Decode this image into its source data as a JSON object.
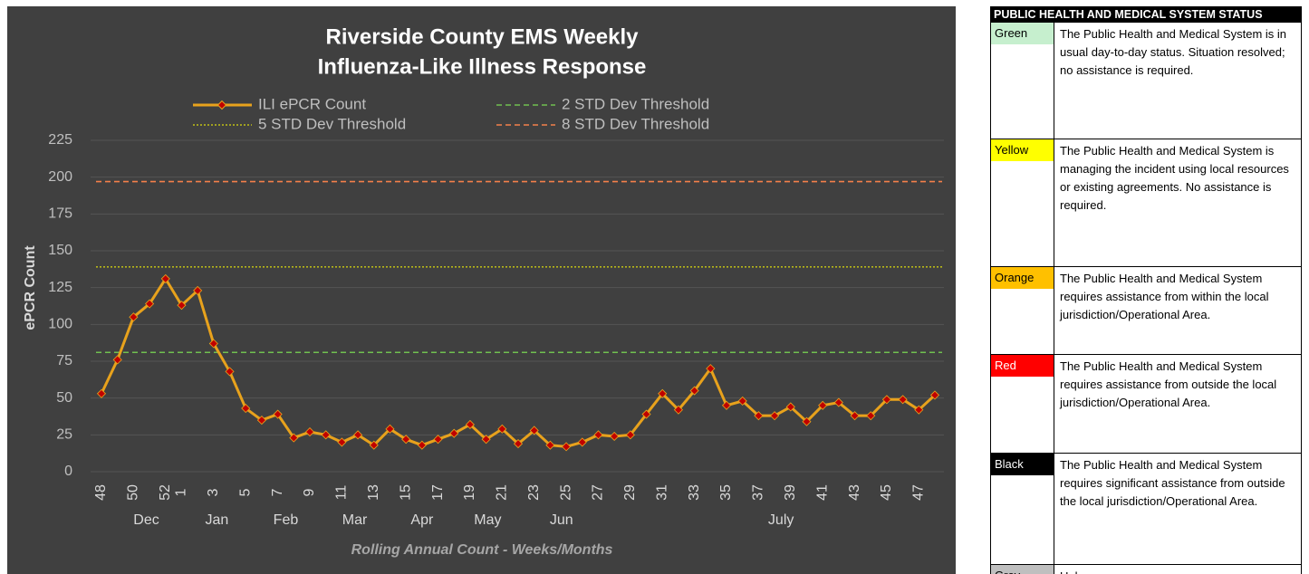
{
  "chart_data": {
    "type": "line",
    "title": "Riverside County EMS Weekly",
    "subtitle": "Influenza-Like Illness Response",
    "y_label": "ePCR Count",
    "x_label": "Rolling Annual Count - Weeks/Months",
    "categories": [
      "48",
      null,
      "50",
      null,
      "52",
      "1",
      null,
      "3",
      null,
      "5",
      null,
      "7",
      null,
      "9",
      null,
      "11",
      null,
      "13",
      null,
      "15",
      null,
      "17",
      null,
      "19",
      null,
      "21",
      null,
      "23",
      null,
      "25",
      null,
      "27",
      null,
      "29",
      null,
      "31",
      null,
      "33",
      null,
      "35",
      null,
      "37",
      null,
      "39",
      null,
      "41",
      null,
      "43",
      null,
      "45",
      null,
      "47",
      null
    ],
    "months": [
      "Dec",
      "Jan",
      "Feb",
      "Mar",
      "Apr",
      "May",
      "Jun",
      "July"
    ],
    "series": [
      {
        "name": "ILI ePCR Count",
        "color": "#e8a21c",
        "marker_color": "#c00000",
        "values": [
          53,
          76,
          105,
          114,
          131,
          113,
          123,
          87,
          68,
          43,
          35,
          39,
          23,
          27,
          25,
          20,
          25,
          18,
          29,
          22,
          18,
          22,
          26,
          32,
          22,
          29,
          19,
          28,
          18,
          17,
          20,
          25,
          24,
          25,
          39,
          53,
          42,
          55,
          70,
          45,
          48,
          38,
          38,
          44,
          34,
          45,
          47,
          38,
          38,
          49,
          49,
          42,
          52
        ]
      }
    ],
    "thresholds": [
      {
        "name": "2 STD Dev Threshold",
        "color": "#70c050",
        "value": 81,
        "dash": "6 4"
      },
      {
        "name": "5 STD Dev Threshold",
        "color": "#ffff00",
        "value": 139,
        "dash": "2 2"
      },
      {
        "name": "8 STD Dev Threshold",
        "color": "#f4804a",
        "value": 197,
        "dash": "6 4"
      }
    ],
    "ylim": [
      0,
      225
    ],
    "yticks": [
      0,
      25,
      50,
      75,
      100,
      125,
      150,
      175,
      200,
      225
    ],
    "grid": true
  },
  "status_table": {
    "title": "PUBLIC HEALTH AND MEDICAL SYSTEM STATUS",
    "rows": [
      {
        "level": "Green",
        "color": "#c6efce",
        "text": "The Public Health and Medical System is in usual day-to-day status. Situation resolved; no assistance is required."
      },
      {
        "level": "Yellow",
        "color": "#ffff00",
        "text": "The Public Health and Medical System is managing the incident using local resources or existing agreements. No assistance is required."
      },
      {
        "level": "Orange",
        "color": "#ffc000",
        "text": "The Public Health and Medical System requires assistance from within the local jurisdiction/Operational Area."
      },
      {
        "level": "Red",
        "color": "#ff0000",
        "text": "The Public Health and Medical System requires assistance from outside the local jurisdiction/Operational Area."
      },
      {
        "level": "Black",
        "color": "#000000",
        "text": "The Public Health and Medical System requires significant assistance from outside the local jurisdiction/Operational Area."
      },
      {
        "level": "Grey",
        "color": "#bfbfbf",
        "text": "Unknown"
      }
    ]
  }
}
